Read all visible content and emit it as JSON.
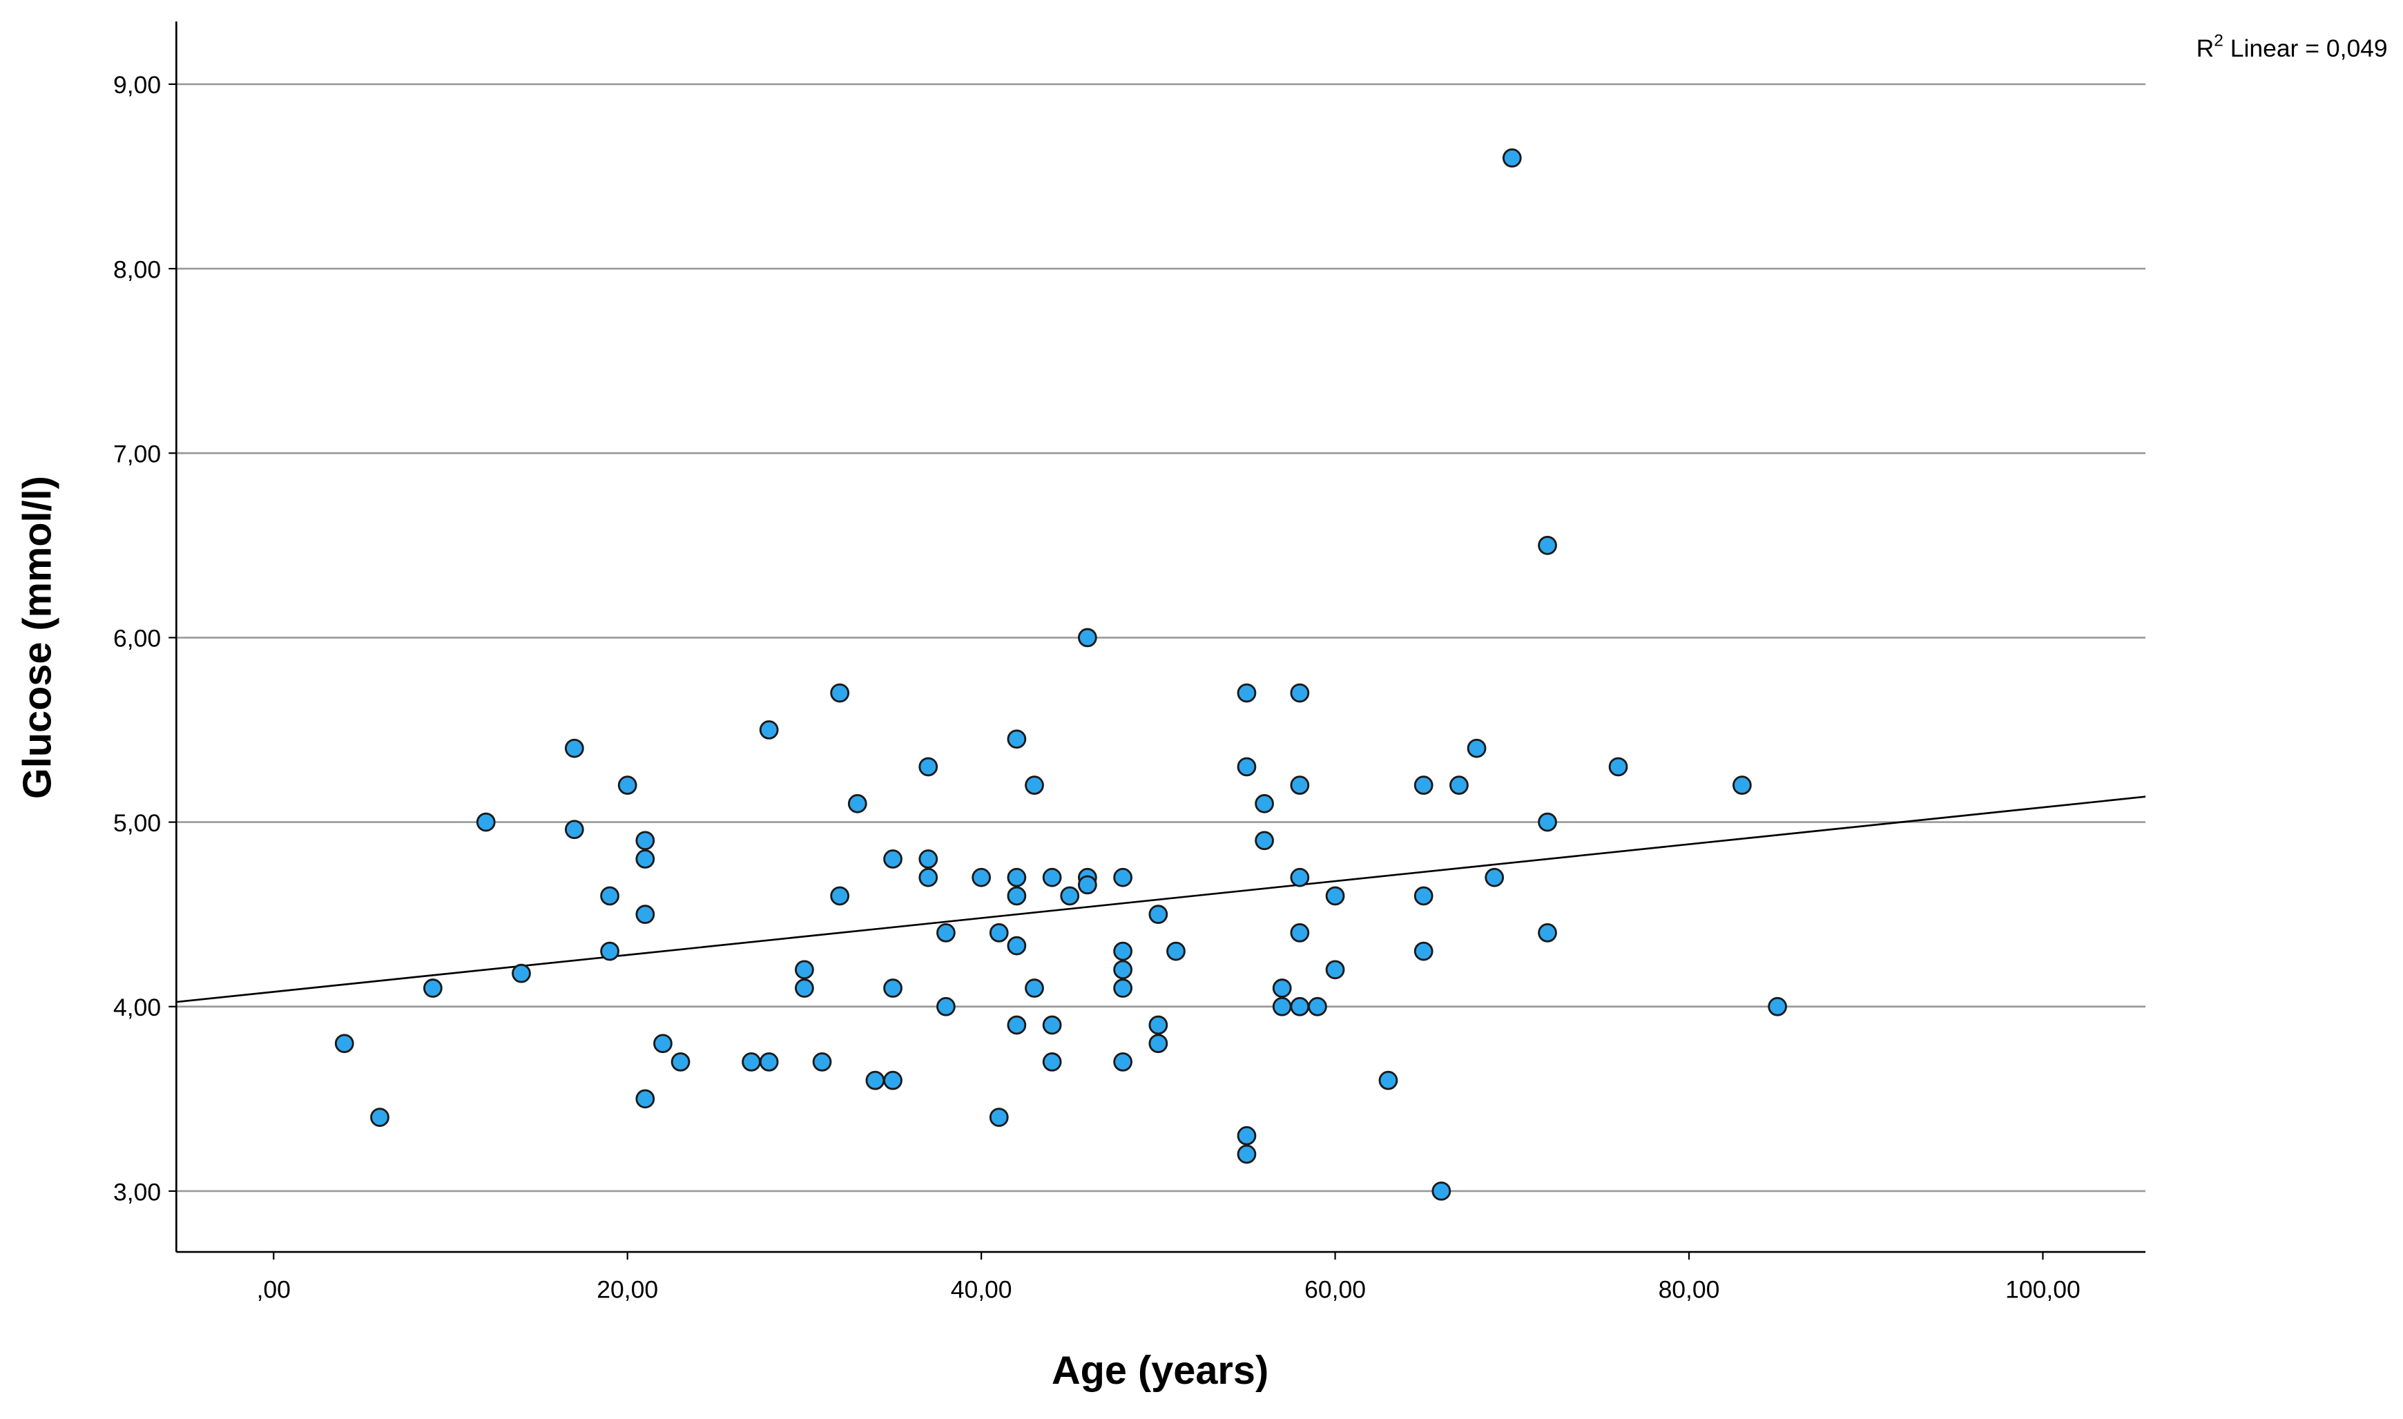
{
  "chart_data": {
    "type": "scatter",
    "title": "",
    "xlabel": "Age (years)",
    "ylabel": "Glucose (mmol/l)",
    "xlim": [
      -5.5,
      105.8
    ],
    "ylim": [
      2.67,
      9.34
    ],
    "x_ticks": [
      0,
      20,
      40,
      60,
      80,
      100
    ],
    "x_tick_labels": [
      ",00",
      "20,00",
      "40,00",
      "60,00",
      "80,00",
      "100,00"
    ],
    "y_ticks": [
      3,
      4,
      5,
      6,
      7,
      8,
      9
    ],
    "y_tick_labels": [
      "3,00",
      "4,00",
      "5,00",
      "6,00",
      "7,00",
      "8,00",
      "9,00"
    ],
    "grid": "horizontal",
    "marker_color": "#2ea6ee",
    "marker_edge_color": "#1a1a1a",
    "fit_line": {
      "type": "linear",
      "intercept": 4.08,
      "slope": 0.01,
      "label_prefix": "R",
      "label_sup": "2",
      "label_suffix": " Linear = 0,049"
    },
    "points": [
      [
        4,
        3.8
      ],
      [
        6,
        3.4
      ],
      [
        9,
        4.1
      ],
      [
        12,
        5.0
      ],
      [
        14,
        4.18
      ],
      [
        17,
        5.4
      ],
      [
        17,
        4.96
      ],
      [
        19,
        4.6
      ],
      [
        19,
        4.3
      ],
      [
        20,
        5.2
      ],
      [
        21,
        4.9
      ],
      [
        21,
        4.8
      ],
      [
        21,
        4.5
      ],
      [
        21,
        3.5
      ],
      [
        22,
        3.8
      ],
      [
        23,
        3.7
      ],
      [
        27,
        3.7
      ],
      [
        28,
        3.7
      ],
      [
        28,
        5.5
      ],
      [
        30,
        4.2
      ],
      [
        30,
        4.1
      ],
      [
        31,
        3.7
      ],
      [
        32,
        5.7
      ],
      [
        32,
        4.6
      ],
      [
        33,
        5.1
      ],
      [
        34,
        3.6
      ],
      [
        35,
        3.6
      ],
      [
        35,
        4.8
      ],
      [
        35,
        4.1
      ],
      [
        37,
        5.3
      ],
      [
        37,
        4.8
      ],
      [
        37,
        4.7
      ],
      [
        38,
        4.4
      ],
      [
        38,
        4.0
      ],
      [
        40,
        4.7
      ],
      [
        41,
        4.4
      ],
      [
        41,
        3.4
      ],
      [
        42,
        5.45
      ],
      [
        42,
        4.7
      ],
      [
        42,
        4.6
      ],
      [
        42,
        4.33
      ],
      [
        42,
        3.9
      ],
      [
        43,
        5.2
      ],
      [
        43,
        4.1
      ],
      [
        44,
        4.7
      ],
      [
        44,
        3.9
      ],
      [
        44,
        3.7
      ],
      [
        45,
        4.6
      ],
      [
        46,
        6.0
      ],
      [
        46,
        4.7
      ],
      [
        46,
        4.66
      ],
      [
        48,
        4.7
      ],
      [
        48,
        4.3
      ],
      [
        48,
        4.2
      ],
      [
        48,
        4.1
      ],
      [
        48,
        3.7
      ],
      [
        50,
        4.5
      ],
      [
        50,
        3.9
      ],
      [
        50,
        3.8
      ],
      [
        51,
        4.3
      ],
      [
        55,
        5.7
      ],
      [
        55,
        5.3
      ],
      [
        55,
        3.3
      ],
      [
        55,
        3.2
      ],
      [
        56,
        5.1
      ],
      [
        56,
        4.9
      ],
      [
        57,
        4.1
      ],
      [
        57,
        4.0
      ],
      [
        58,
        5.7
      ],
      [
        58,
        5.2
      ],
      [
        58,
        4.7
      ],
      [
        58,
        4.4
      ],
      [
        58,
        4.0
      ],
      [
        59,
        4.0
      ],
      [
        60,
        4.6
      ],
      [
        60,
        4.2
      ],
      [
        63,
        3.6
      ],
      [
        65,
        5.2
      ],
      [
        65,
        4.6
      ],
      [
        65,
        4.3
      ],
      [
        66,
        3.0
      ],
      [
        67,
        5.2
      ],
      [
        68,
        5.4
      ],
      [
        69,
        4.7
      ],
      [
        70,
        8.6
      ],
      [
        72,
        6.5
      ],
      [
        72,
        5.0
      ],
      [
        72,
        4.4
      ],
      [
        76,
        5.3
      ],
      [
        83,
        5.2
      ],
      [
        85,
        4.0
      ]
    ]
  }
}
